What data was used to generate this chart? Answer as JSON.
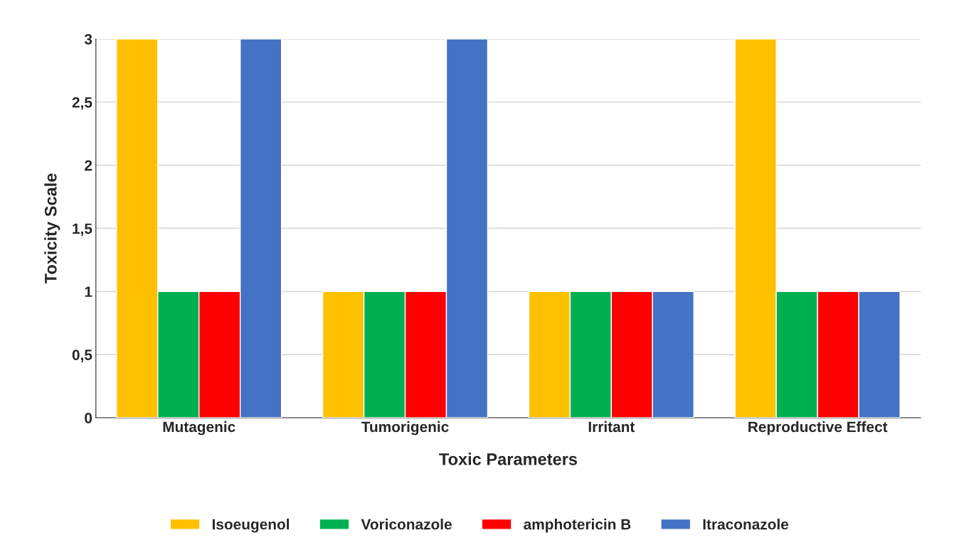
{
  "chart_data": {
    "type": "bar",
    "xlabel": "Toxic Parameters",
    "ylabel": "Toxicity Scale",
    "categories": [
      "Mutagenic",
      "Tumorigenic",
      "Irritant",
      "Reproductive Effect"
    ],
    "series": [
      {
        "name": "Isoeugenol",
        "color": "#ffc000",
        "values": [
          3,
          1,
          1,
          3
        ]
      },
      {
        "name": "Voriconazole",
        "color": "#00b050",
        "values": [
          1,
          1,
          1,
          1
        ]
      },
      {
        "name": "amphotericin B",
        "color": "#ff0000",
        "values": [
          1,
          1,
          1,
          1
        ]
      },
      {
        "name": "Itraconazole",
        "color": "#4472c4",
        "values": [
          3,
          3,
          1,
          1
        ]
      }
    ],
    "ylim": [
      0,
      3
    ],
    "yticks": [
      0,
      {
        "value": 0.5,
        "label": "0,5"
      },
      1,
      {
        "value": 1.5,
        "label": "1,5"
      },
      2,
      {
        "value": 2.5,
        "label": "2,5"
      },
      3
    ],
    "grid": "y",
    "legend": "bottom"
  }
}
